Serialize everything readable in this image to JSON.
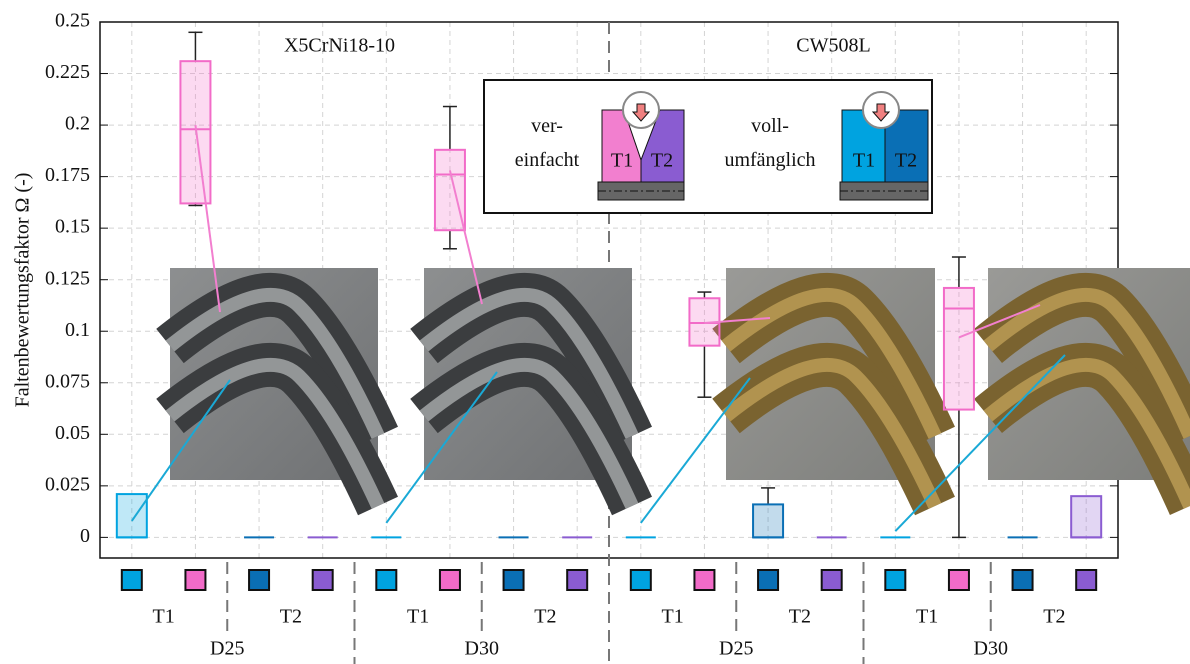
{
  "chart_data": {
    "type": "box",
    "ylabel": "Faltenbewertungsfaktor Ω (-)",
    "ylim": [
      -0.01,
      0.25
    ],
    "yticks": [
      0,
      0.025,
      0.05,
      0.075,
      0.1,
      0.125,
      0.15,
      0.175,
      0.2,
      0.225,
      0.25
    ],
    "grid": true,
    "boxes": [
      {
        "color": "#00a3e0",
        "whislo": 0,
        "q1": 0,
        "med": 0,
        "q3": 0.021,
        "whishi": 0.021
      },
      {
        "color": "#f26bc8",
        "whislo": 0.161,
        "q1": 0.162,
        "med": 0.198,
        "q3": 0.231,
        "whishi": 0.245
      },
      {
        "color": "#0a6fb5",
        "whislo": 0,
        "q1": 0,
        "med": 0,
        "q3": 0,
        "whishi": 0
      },
      {
        "color": "#8a5cd1",
        "whislo": 0,
        "q1": 0,
        "med": 0,
        "q3": 0,
        "whishi": 0
      },
      {
        "color": "#00a3e0",
        "whislo": 0,
        "q1": 0,
        "med": 0,
        "q3": 0,
        "whishi": 0
      },
      {
        "color": "#f26bc8",
        "whislo": 0.14,
        "q1": 0.149,
        "med": 0.176,
        "q3": 0.188,
        "whishi": 0.209
      },
      {
        "color": "#0a6fb5",
        "whislo": 0,
        "q1": 0,
        "med": 0,
        "q3": 0,
        "whishi": 0
      },
      {
        "color": "#8a5cd1",
        "whislo": 0,
        "q1": 0,
        "med": 0,
        "q3": 0,
        "whishi": 0
      },
      {
        "color": "#00a3e0",
        "whislo": 0,
        "q1": 0,
        "med": 0,
        "q3": 0,
        "whishi": 0
      },
      {
        "color": "#f26bc8",
        "whislo": 0.068,
        "q1": 0.093,
        "med": 0.104,
        "q3": 0.116,
        "whishi": 0.119
      },
      {
        "color": "#0a6fb5",
        "whislo": 0,
        "q1": 0,
        "med": 0,
        "q3": 0.016,
        "whishi": 0.024
      },
      {
        "color": "#8a5cd1",
        "whislo": 0,
        "q1": 0,
        "med": 0,
        "q3": 0,
        "whishi": 0
      },
      {
        "color": "#00a3e0",
        "whislo": 0,
        "q1": 0,
        "med": 0,
        "q3": 0,
        "whishi": 0
      },
      {
        "color": "#f26bc8",
        "whislo": 0,
        "q1": 0.062,
        "med": 0.111,
        "q3": 0.121,
        "whishi": 0.136
      },
      {
        "color": "#0a6fb5",
        "whislo": 0,
        "q1": 0,
        "med": 0,
        "q3": 0,
        "whishi": 0
      },
      {
        "color": "#8a5cd1",
        "whislo": 0,
        "q1": 0,
        "med": 0,
        "q3": 0.02,
        "whishi": 0.02
      }
    ],
    "t_labels": [
      "T1",
      "T2",
      "T1",
      "T2",
      "T1",
      "T2",
      "T1",
      "T2"
    ],
    "d_labels": [
      "D25",
      "D30",
      "D25",
      "D30"
    ],
    "materials": [
      "X5CrNi18-10",
      "CW508L"
    ],
    "legend": {
      "simplified": "ver-\neinfacht",
      "full": "voll-\numfänglich",
      "t1": "T1",
      "t2": "T2"
    }
  }
}
